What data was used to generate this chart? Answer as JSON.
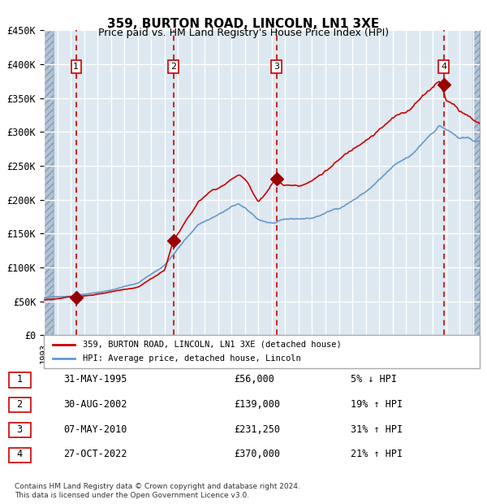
{
  "title": "359, BURTON ROAD, LINCOLN, LN1 3XE",
  "subtitle": "Price paid vs. HM Land Registry's House Price Index (HPI)",
  "legend_line1": "359, BURTON ROAD, LINCOLN, LN1 3XE (detached house)",
  "legend_line2": "HPI: Average price, detached house, Lincoln",
  "footer1": "Contains HM Land Registry data © Crown copyright and database right 2024.",
  "footer2": "This data is licensed under the Open Government Licence v3.0.",
  "hpi_color": "#6699cc",
  "price_color": "#cc0000",
  "marker_color": "#990000",
  "bg_color": "#dde8f0",
  "hatch_color": "#b0c4d8",
  "grid_color": "#ffffff",
  "vline_color": "#cc0000",
  "purchases": [
    {
      "label": "1",
      "date_str": "31-MAY-1995",
      "price": 56000,
      "pct": "5% ↓ HPI",
      "year": 1995.41
    },
    {
      "label": "2",
      "date_str": "30-AUG-2002",
      "price": 139000,
      "pct": "19% ↑ HPI",
      "year": 2002.66
    },
    {
      "label": "3",
      "date_str": "07-MAY-2010",
      "price": 231250,
      "pct": "31% ↑ HPI",
      "year": 2010.35
    },
    {
      "label": "4",
      "date_str": "27-OCT-2022",
      "price": 370000,
      "pct": "21% ↑ HPI",
      "year": 2022.82
    }
  ],
  "ylim": [
    0,
    450000
  ],
  "xlim_start": 1993.0,
  "xlim_end": 2025.5,
  "yticks": [
    0,
    50000,
    100000,
    150000,
    200000,
    250000,
    300000,
    350000,
    400000,
    450000
  ],
  "ytick_labels": [
    "£0",
    "£50K",
    "£100K",
    "£150K",
    "£200K",
    "£250K",
    "£300K",
    "£350K",
    "£400K",
    "£450K"
  ]
}
